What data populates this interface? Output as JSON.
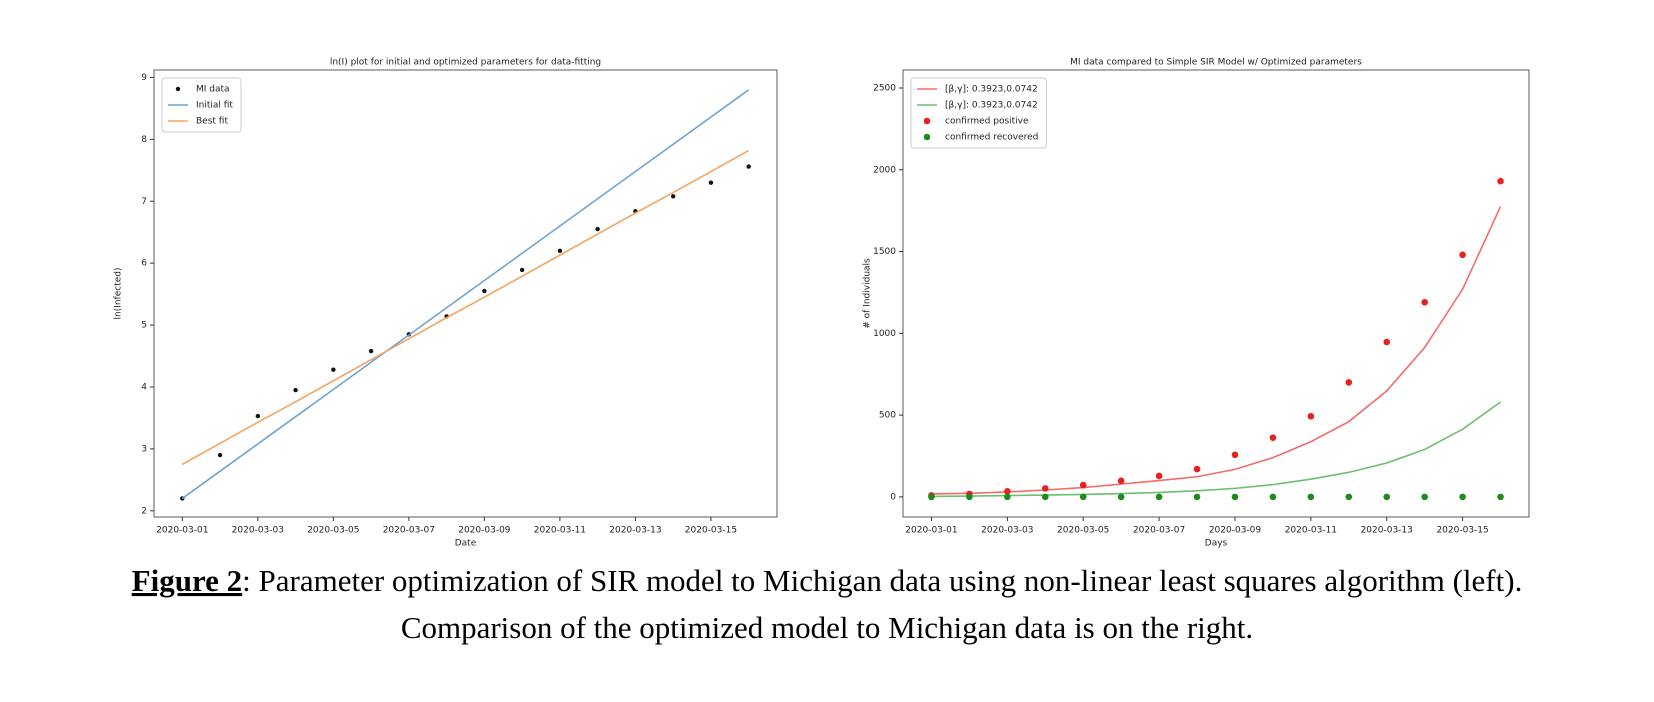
{
  "chart_data": [
    {
      "type": "line",
      "title": "ln(I) plot for initial and optimized parameters for data-fitting",
      "x_label": "Date",
      "y_label": "ln(Infected)",
      "x": [
        "2020-03-01",
        "2020-03-02",
        "2020-03-03",
        "2020-03-04",
        "2020-03-05",
        "2020-03-06",
        "2020-03-07",
        "2020-03-08",
        "2020-03-09",
        "2020-03-10",
        "2020-03-11",
        "2020-03-12",
        "2020-03-13",
        "2020-03-14",
        "2020-03-15",
        "2020-03-16"
      ],
      "xlim": [
        "2020-03-01",
        "2020-03-16"
      ],
      "xticks": [
        "2020-03-01",
        "2020-03-03",
        "2020-03-05",
        "2020-03-07",
        "2020-03-09",
        "2020-03-11",
        "2020-03-13",
        "2020-03-15"
      ],
      "ylim": [
        1.9,
        9.12
      ],
      "yticks": [
        2,
        3,
        4,
        5,
        6,
        7,
        8,
        9
      ],
      "legend": "upper left",
      "series": [
        {
          "name": "MI data",
          "color": "#111111",
          "mode": "markers",
          "size": 2.2,
          "values": [
            2.2,
            2.9,
            3.53,
            3.95,
            4.28,
            4.58,
            4.85,
            5.14,
            5.55,
            5.89,
            6.2,
            6.55,
            6.84,
            7.08,
            7.3,
            7.56
          ]
        },
        {
          "name": "Initial fit",
          "color": "#6fa4d2",
          "mode": "line",
          "values": [
            2.2,
            2.64,
            3.08,
            3.52,
            3.96,
            4.4,
            4.84,
            5.28,
            5.72,
            6.16,
            6.6,
            7.04,
            7.48,
            7.92,
            8.36,
            8.8
          ]
        },
        {
          "name": "Best fit",
          "color": "#f5a35e",
          "mode": "line",
          "values": [
            2.75,
            3.09,
            3.43,
            3.76,
            4.1,
            4.44,
            4.78,
            5.12,
            5.45,
            5.79,
            6.13,
            6.47,
            6.81,
            7.14,
            7.48,
            7.82
          ]
        }
      ]
    },
    {
      "type": "line",
      "title": "MI data compared to Simple SIR Model w/ Optimized parameters",
      "x_label": "Days",
      "y_label": "# of Individuals",
      "x": [
        "2020-03-01",
        "2020-03-02",
        "2020-03-03",
        "2020-03-04",
        "2020-03-05",
        "2020-03-06",
        "2020-03-07",
        "2020-03-08",
        "2020-03-09",
        "2020-03-10",
        "2020-03-11",
        "2020-03-12",
        "2020-03-13",
        "2020-03-14",
        "2020-03-15",
        "2020-03-16"
      ],
      "xlim": [
        "2020-03-01",
        "2020-03-16"
      ],
      "xticks": [
        "2020-03-01",
        "2020-03-03",
        "2020-03-05",
        "2020-03-07",
        "2020-03-09",
        "2020-03-11",
        "2020-03-13",
        "2020-03-15"
      ],
      "ylim": [
        -123,
        2610
      ],
      "yticks": [
        0,
        500,
        1000,
        1500,
        2000,
        2500
      ],
      "legend": "upper left",
      "series": [
        {
          "name": "[β,γ]: 0.3923,0.0742",
          "color": "#f36b6b",
          "mode": "line",
          "values": [
            18,
            22,
            30,
            42,
            57,
            78,
            100,
            123,
            168,
            240,
            337,
            460,
            648,
            913,
            1270,
            1775
          ]
        },
        {
          "name": "[β,γ]: 0.3923,0.0742",
          "color": "#6cbf6c",
          "mode": "line",
          "values": [
            3,
            5,
            8,
            11,
            15,
            20,
            27,
            37,
            52,
            75,
            108,
            150,
            207,
            290,
            414,
            580
          ]
        },
        {
          "name": "confirmed positive",
          "color": "#e8201f",
          "mode": "markers",
          "size": 3.3,
          "values": [
            9,
            18,
            34,
            52,
            72,
            98,
            128,
            170,
            257,
            362,
            493,
            700,
            947,
            1190,
            1480,
            1930
          ]
        },
        {
          "name": "confirmed recovered",
          "color": "#1c8c1c",
          "mode": "markers",
          "size": 3.3,
          "values": [
            0,
            0,
            0,
            0,
            0,
            0,
            0,
            0,
            0,
            0,
            0,
            0,
            0,
            0,
            0,
            0
          ]
        }
      ]
    }
  ],
  "caption": {
    "label": "Figure 2",
    "line1": ": Parameter optimization of SIR model to Michigan data using non-linear least squares algorithm (left).",
    "line2": "Comparison of the optimized model to Michigan data is on the right."
  }
}
